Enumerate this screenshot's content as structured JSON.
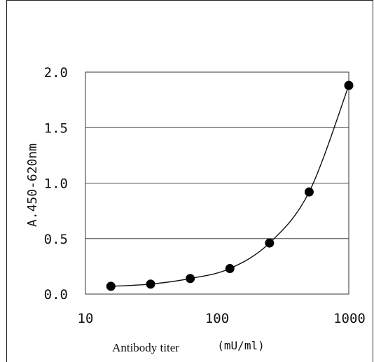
{
  "chart_data": {
    "type": "scatter",
    "xscale": "log",
    "xlim": [
      10,
      1000
    ],
    "ylim": [
      0,
      2.0
    ],
    "xticks": [
      "10",
      "100",
      "1000"
    ],
    "yticks": [
      "0.0",
      "0.5",
      "1.0",
      "1.5",
      "2.0"
    ],
    "ylabel": "A.450-620nm",
    "xlabel": "Antibody titer",
    "xunit": "(mU/ml)",
    "grid": "horizontal",
    "series": [
      {
        "x": [
          15.6,
          31.25,
          62.5,
          125,
          250,
          500,
          1000
        ],
        "y": [
          0.07,
          0.09,
          0.14,
          0.23,
          0.46,
          0.92,
          1.88
        ],
        "marker": "filled-circle",
        "color": "#000000",
        "connect": "smooth-line"
      }
    ]
  }
}
